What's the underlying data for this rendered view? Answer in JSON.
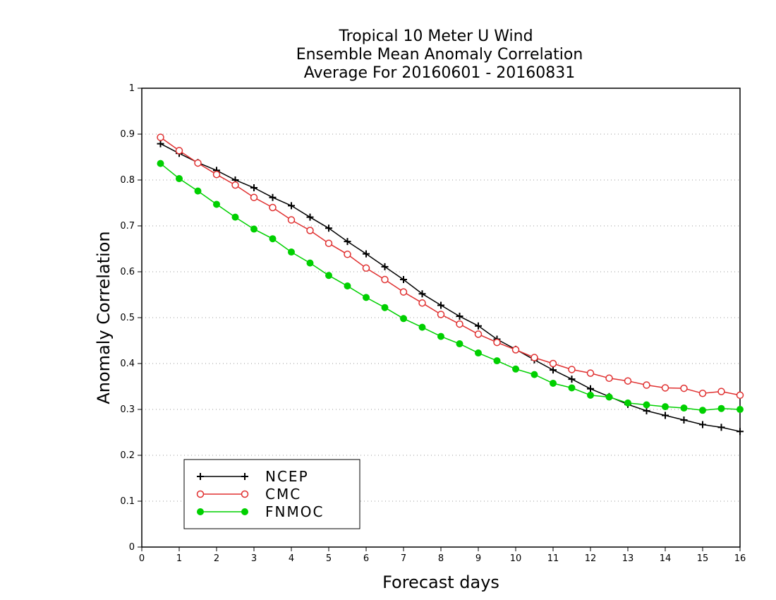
{
  "chart_data": {
    "type": "line",
    "title_lines": [
      "Tropical 10 Meter U Wind",
      "Ensemble Mean Anomaly Correlation",
      "Average For 20160601 - 20160831"
    ],
    "xlabel": "Forecast days",
    "ylabel": "Anomaly Correlation",
    "xlim": [
      0,
      16
    ],
    "ylim": [
      0,
      1
    ],
    "x_ticks": [
      0,
      1,
      2,
      3,
      4,
      5,
      6,
      7,
      8,
      9,
      10,
      11,
      12,
      13,
      14,
      15,
      16
    ],
    "x_tick_labels": [
      "0",
      "1",
      "2",
      "3",
      "4",
      "5",
      "6",
      "7",
      "8",
      "9",
      "10",
      "11",
      "12",
      "13",
      "14",
      "15",
      "16"
    ],
    "y_ticks": [
      0,
      0.1,
      0.2,
      0.3,
      0.4,
      0.5,
      0.6,
      0.7,
      0.8,
      0.9,
      1
    ],
    "y_tick_labels": [
      "0",
      "0.1",
      "0.2",
      "0.3",
      "0.4",
      "0.5",
      "0.6",
      "0.7",
      "0.8",
      "0.9",
      "1"
    ],
    "grid": "horizontal-dotted",
    "legend_position": "bottom-left",
    "x": [
      0.5,
      1,
      1.5,
      2,
      2.5,
      3,
      3.5,
      4,
      4.5,
      5,
      5.5,
      6,
      6.5,
      7,
      7.5,
      8,
      8.5,
      9,
      9.5,
      10,
      10.5,
      11,
      11.5,
      12,
      12.5,
      13,
      13.5,
      14,
      14.5,
      15,
      15.5,
      16
    ],
    "series": [
      {
        "name": "NCEP",
        "color": "#000000",
        "marker": "plus",
        "values": [
          0.879,
          0.858,
          0.838,
          0.821,
          0.8,
          0.783,
          0.762,
          0.744,
          0.719,
          0.695,
          0.666,
          0.639,
          0.611,
          0.583,
          0.552,
          0.527,
          0.503,
          0.482,
          0.453,
          0.431,
          0.408,
          0.386,
          0.366,
          0.345,
          0.328,
          0.311,
          0.297,
          0.287,
          0.277,
          0.267,
          0.261,
          0.252
        ]
      },
      {
        "name": "CMC",
        "color": "#e03030",
        "marker": "open-circle",
        "values": [
          0.893,
          0.864,
          0.837,
          0.812,
          0.789,
          0.762,
          0.74,
          0.713,
          0.69,
          0.662,
          0.638,
          0.608,
          0.583,
          0.556,
          0.532,
          0.507,
          0.486,
          0.464,
          0.446,
          0.43,
          0.413,
          0.4,
          0.387,
          0.379,
          0.368,
          0.362,
          0.353,
          0.347,
          0.346,
          0.335,
          0.339,
          0.331
        ]
      },
      {
        "name": "FNMOC",
        "color": "#00d000",
        "marker": "filled-circle",
        "values": [
          0.836,
          0.803,
          0.776,
          0.747,
          0.719,
          0.693,
          0.672,
          0.643,
          0.619,
          0.592,
          0.569,
          0.544,
          0.522,
          0.498,
          0.479,
          0.459,
          0.443,
          0.423,
          0.406,
          0.388,
          0.376,
          0.357,
          0.347,
          0.331,
          0.327,
          0.314,
          0.31,
          0.306,
          0.303,
          0.298,
          0.302,
          0.3
        ]
      }
    ]
  }
}
